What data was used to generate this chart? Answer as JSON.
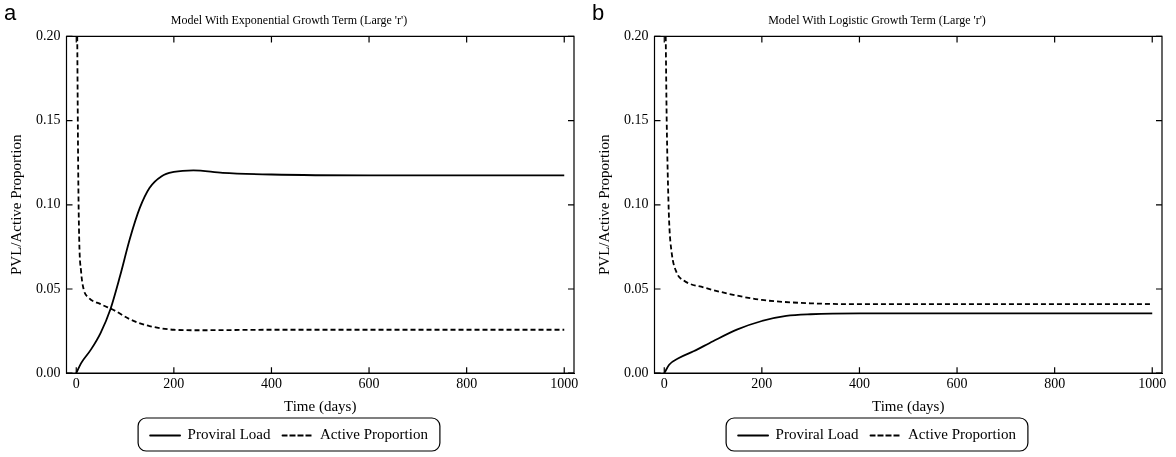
{
  "chart_data": [
    {
      "type": "line",
      "title": "Model With Exponential Growth Term (Large 'r')",
      "xlabel": "Time (days)",
      "ylabel": "PVL/Active Proportion",
      "annotations": [
        "a"
      ],
      "xlim": [
        -20,
        1020
      ],
      "xticks": [
        0,
        200,
        400,
        600,
        800,
        1000
      ],
      "ylim": [
        0,
        0.2
      ],
      "yticks": [
        {
          "value": 0,
          "label": "0.00"
        },
        {
          "value": 0.05,
          "label": "0.05"
        },
        {
          "value": 0.1,
          "label": "0.10"
        },
        {
          "value": 0.15,
          "label": "0.15"
        },
        {
          "value": 0.2,
          "label": "0.20"
        }
      ],
      "grid": false,
      "legend": "bottom",
      "marker": "none",
      "series": [
        {
          "name": "Proviral Load",
          "color": "#000000",
          "line_style": "solid",
          "x": [
            0,
            10,
            30,
            50,
            70,
            90,
            110,
            130,
            150,
            175,
            200,
            240,
            300,
            400,
            600,
            1000
          ],
          "values": [
            0,
            0.006,
            0.014,
            0.024,
            0.038,
            0.058,
            0.08,
            0.098,
            0.11,
            0.117,
            0.1195,
            0.1205,
            0.119,
            0.118,
            0.1175,
            0.1175
          ]
        },
        {
          "name": "Active Proportion",
          "color": "#000000",
          "line_style": "dashed",
          "x": [
            2,
            4,
            6,
            10,
            15,
            25,
            50,
            80,
            110,
            150,
            200,
            250,
            400,
            1000
          ],
          "values": [
            0.2,
            0.12,
            0.08,
            0.06,
            0.05,
            0.045,
            0.041,
            0.037,
            0.032,
            0.028,
            0.0258,
            0.0255,
            0.0258,
            0.0258
          ]
        }
      ]
    },
    {
      "type": "line",
      "title": "Model With Logistic Growth Term (Large 'r')",
      "xlabel": "Time (days)",
      "ylabel": "PVL/Active Proportion",
      "annotations": [
        "b"
      ],
      "xlim": [
        -20,
        1020
      ],
      "xticks": [
        0,
        200,
        400,
        600,
        800,
        1000
      ],
      "ylim": [
        0,
        0.2
      ],
      "yticks": [
        {
          "value": 0,
          "label": "0.00"
        },
        {
          "value": 0.05,
          "label": "0.05"
        },
        {
          "value": 0.1,
          "label": "0.10"
        },
        {
          "value": 0.15,
          "label": "0.15"
        },
        {
          "value": 0.2,
          "label": "0.20"
        }
      ],
      "grid": false,
      "legend": "bottom",
      "marker": "none",
      "series": [
        {
          "name": "Proviral Load",
          "color": "#000000",
          "line_style": "solid",
          "x": [
            0,
            10,
            30,
            60,
            100,
            150,
            200,
            250,
            300,
            400,
            1000
          ],
          "values": [
            0,
            0.005,
            0.009,
            0.013,
            0.019,
            0.026,
            0.031,
            0.034,
            0.035,
            0.0355,
            0.0355
          ]
        },
        {
          "name": "Active Proportion",
          "color": "#000000",
          "line_style": "dashed",
          "x": [
            3,
            5,
            7,
            10,
            15,
            25,
            40,
            80,
            150,
            200,
            300,
            400,
            1000
          ],
          "values": [
            0.2,
            0.15,
            0.12,
            0.09,
            0.072,
            0.06,
            0.055,
            0.051,
            0.046,
            0.0435,
            0.0415,
            0.041,
            0.041
          ]
        }
      ]
    }
  ]
}
